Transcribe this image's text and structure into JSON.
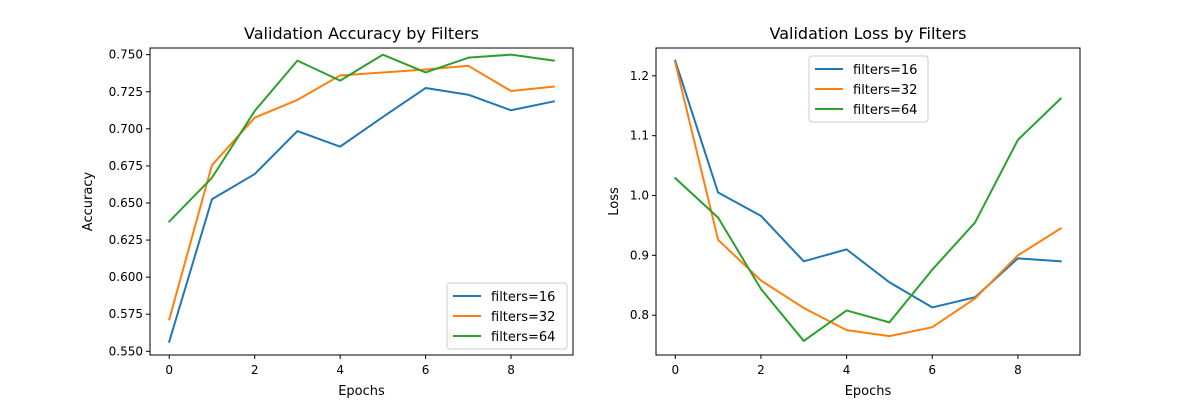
{
  "colors": {
    "series": [
      "#1f77b4",
      "#ff7f0e",
      "#2ca02c"
    ],
    "axes": "#000000",
    "background": "#ffffff"
  },
  "chart_data": [
    {
      "type": "line",
      "title": "Validation Accuracy by Filters",
      "xlabel": "Epochs",
      "ylabel": "Accuracy",
      "x": [
        0,
        1,
        2,
        3,
        4,
        5,
        6,
        7,
        8,
        9
      ],
      "xlim": [
        -0.45,
        9.45
      ],
      "ylim": [
        0.5475,
        0.7545
      ],
      "xticks": [
        0,
        2,
        4,
        6,
        8
      ],
      "yticks": [
        0.55,
        0.575,
        0.6,
        0.625,
        0.65,
        0.675,
        0.7,
        0.725,
        0.75
      ],
      "xtick_labels": [
        "0",
        "2",
        "4",
        "6",
        "8"
      ],
      "ytick_labels": [
        "0.550",
        "0.575",
        "0.600",
        "0.625",
        "0.650",
        "0.675",
        "0.700",
        "0.725",
        "0.750"
      ],
      "legend": {
        "position": "lower-right",
        "entries": [
          "filters=16",
          "filters=32",
          "filters=64"
        ]
      },
      "grid": false,
      "series": [
        {
          "name": "filters=16",
          "values": [
            0.5565,
            0.6525,
            0.6695,
            0.6985,
            0.688,
            0.708,
            0.7275,
            0.723,
            0.7125,
            0.7185
          ]
        },
        {
          "name": "filters=32",
          "values": [
            0.5715,
            0.6755,
            0.7075,
            0.7195,
            0.736,
            0.738,
            0.74,
            0.7425,
            0.7255,
            0.7285
          ]
        },
        {
          "name": "filters=64",
          "values": [
            0.6375,
            0.667,
            0.712,
            0.746,
            0.7325,
            0.75,
            0.738,
            0.748,
            0.75,
            0.746
          ]
        }
      ]
    },
    {
      "type": "line",
      "title": "Validation Loss by Filters",
      "xlabel": "Epochs",
      "ylabel": "Loss",
      "x": [
        0,
        1,
        2,
        3,
        4,
        5,
        6,
        7,
        8,
        9
      ],
      "xlim": [
        -0.45,
        9.45
      ],
      "ylim": [
        0.7335,
        1.2465
      ],
      "xticks": [
        0,
        2,
        4,
        6,
        8
      ],
      "yticks": [
        0.8,
        0.9,
        1.0,
        1.1,
        1.2
      ],
      "xtick_labels": [
        "0",
        "2",
        "4",
        "6",
        "8"
      ],
      "ytick_labels": [
        "0.8",
        "0.9",
        "1.0",
        "1.1",
        "1.2"
      ],
      "legend": {
        "position": "upper-center",
        "entries": [
          "filters=16",
          "filters=32",
          "filters=64"
        ]
      },
      "grid": false,
      "series": [
        {
          "name": "filters=16",
          "values": [
            1.225,
            1.005,
            0.966,
            0.89,
            0.91,
            0.855,
            0.813,
            0.83,
            0.895,
            0.89
          ]
        },
        {
          "name": "filters=32",
          "values": [
            1.222,
            0.926,
            0.858,
            0.812,
            0.775,
            0.765,
            0.78,
            0.828,
            0.9,
            0.945
          ]
        },
        {
          "name": "filters=64",
          "values": [
            1.029,
            0.963,
            0.844,
            0.757,
            0.808,
            0.788,
            0.876,
            0.955,
            1.093,
            1.162
          ]
        }
      ]
    }
  ]
}
